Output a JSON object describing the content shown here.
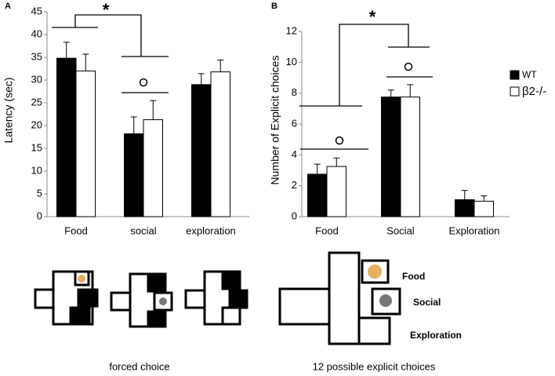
{
  "chart_data": [
    {
      "type": "bar",
      "panel": "A",
      "annotation": "*",
      "y_label": "Latency (sec)",
      "categories": [
        "Food",
        "social",
        "exploration"
      ],
      "series": [
        {
          "name": "WT",
          "color": "#000000",
          "values": [
            34.8,
            18.2,
            29.0
          ],
          "errors": [
            3.5,
            3.7,
            2.4
          ]
        },
        {
          "name": "β2-/-",
          "color": "#ffffff",
          "values": [
            32.0,
            21.3,
            31.8
          ],
          "errors": [
            3.7,
            4.2,
            2.6
          ]
        }
      ],
      "ylim": [
        0,
        45
      ],
      "yticks": [
        0,
        5,
        10,
        15,
        20,
        25,
        30,
        35,
        40,
        45
      ]
    },
    {
      "type": "bar",
      "panel": "B",
      "annotation": "*",
      "y_label": "Number of Explicit  choices",
      "categories": [
        "Food",
        "Social",
        "Exploration"
      ],
      "series": [
        {
          "name": "WT",
          "color": "#000000",
          "values": [
            2.75,
            7.75,
            1.1
          ],
          "errors": [
            0.65,
            0.45,
            0.6
          ]
        },
        {
          "name": "β2-/-",
          "color": "#ffffff",
          "values": [
            3.25,
            7.75,
            1.0
          ],
          "errors": [
            0.55,
            0.8,
            0.35
          ]
        }
      ],
      "ylim": [
        0,
        12
      ],
      "yticks": [
        0,
        2,
        4,
        6,
        8,
        10,
        12
      ],
      "legend": "right"
    }
  ],
  "diagrams": {
    "caption_a": "forced choice",
    "caption_b": "12 possible explicit choices",
    "labels": [
      "Food",
      "Social",
      "Exploration"
    ]
  }
}
